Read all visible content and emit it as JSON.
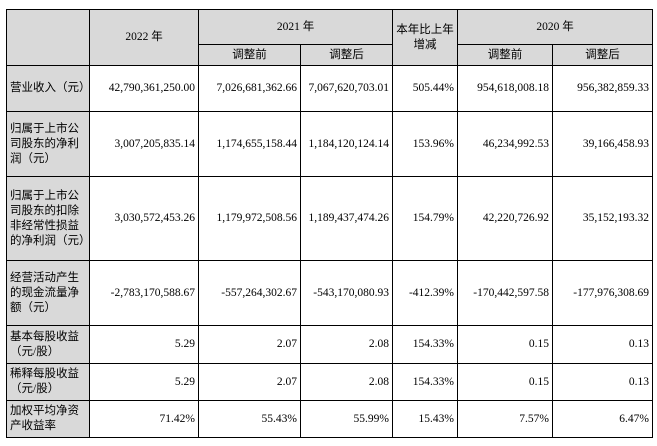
{
  "headers": {
    "y2022": "2022 年",
    "y2021": "2021 年",
    "yoy": "本年比上年增减",
    "y2020": "2020 年",
    "before": "调整前",
    "after": "调整后"
  },
  "rows": [
    {
      "label": "营业收入（元）",
      "v2022": "42,790,361,250.00",
      "v2021_before": "7,026,681,362.66",
      "v2021_after": "7,067,620,703.01",
      "yoy": "505.44%",
      "v2020_before": "954,618,008.18",
      "v2020_after": "956,382,859.33"
    },
    {
      "label": "归属于上市公司股东的净利润（元）",
      "v2022": "3,007,205,835.14",
      "v2021_before": "1,174,655,158.44",
      "v2021_after": "1,184,120,124.14",
      "yoy": "153.96%",
      "v2020_before": "46,234,992.53",
      "v2020_after": "39,166,458.93"
    },
    {
      "label": "归属于上市公司股东的扣除非经常性损益的净利润（元）",
      "v2022": "3,030,572,453.26",
      "v2021_before": "1,179,972,508.56",
      "v2021_after": "1,189,437,474.26",
      "yoy": "154.79%",
      "v2020_before": "42,220,726.92",
      "v2020_after": "35,152,193.32"
    },
    {
      "label": "经营活动产生的现金流量净额（元）",
      "v2022": "-2,783,170,588.67",
      "v2021_before": "-557,264,302.67",
      "v2021_after": "-543,170,080.93",
      "yoy": "-412.39%",
      "v2020_before": "-170,442,597.58",
      "v2020_after": "-177,976,308.69"
    },
    {
      "label": "基本每股收益（元/股）",
      "v2022": "5.29",
      "v2021_before": "2.07",
      "v2021_after": "2.08",
      "yoy": "154.33%",
      "v2020_before": "0.15",
      "v2020_after": "0.13"
    },
    {
      "label": "稀释每股收益（元/股）",
      "v2022": "5.29",
      "v2021_before": "2.07",
      "v2021_after": "2.08",
      "yoy": "154.33%",
      "v2020_before": "0.15",
      "v2020_after": "0.13"
    },
    {
      "label": "加权平均净资产收益率",
      "v2022": "71.42%",
      "v2021_before": "55.43%",
      "v2021_after": "55.99%",
      "yoy": "15.43%",
      "v2020_before": "7.57%",
      "v2020_after": "6.47%"
    }
  ]
}
